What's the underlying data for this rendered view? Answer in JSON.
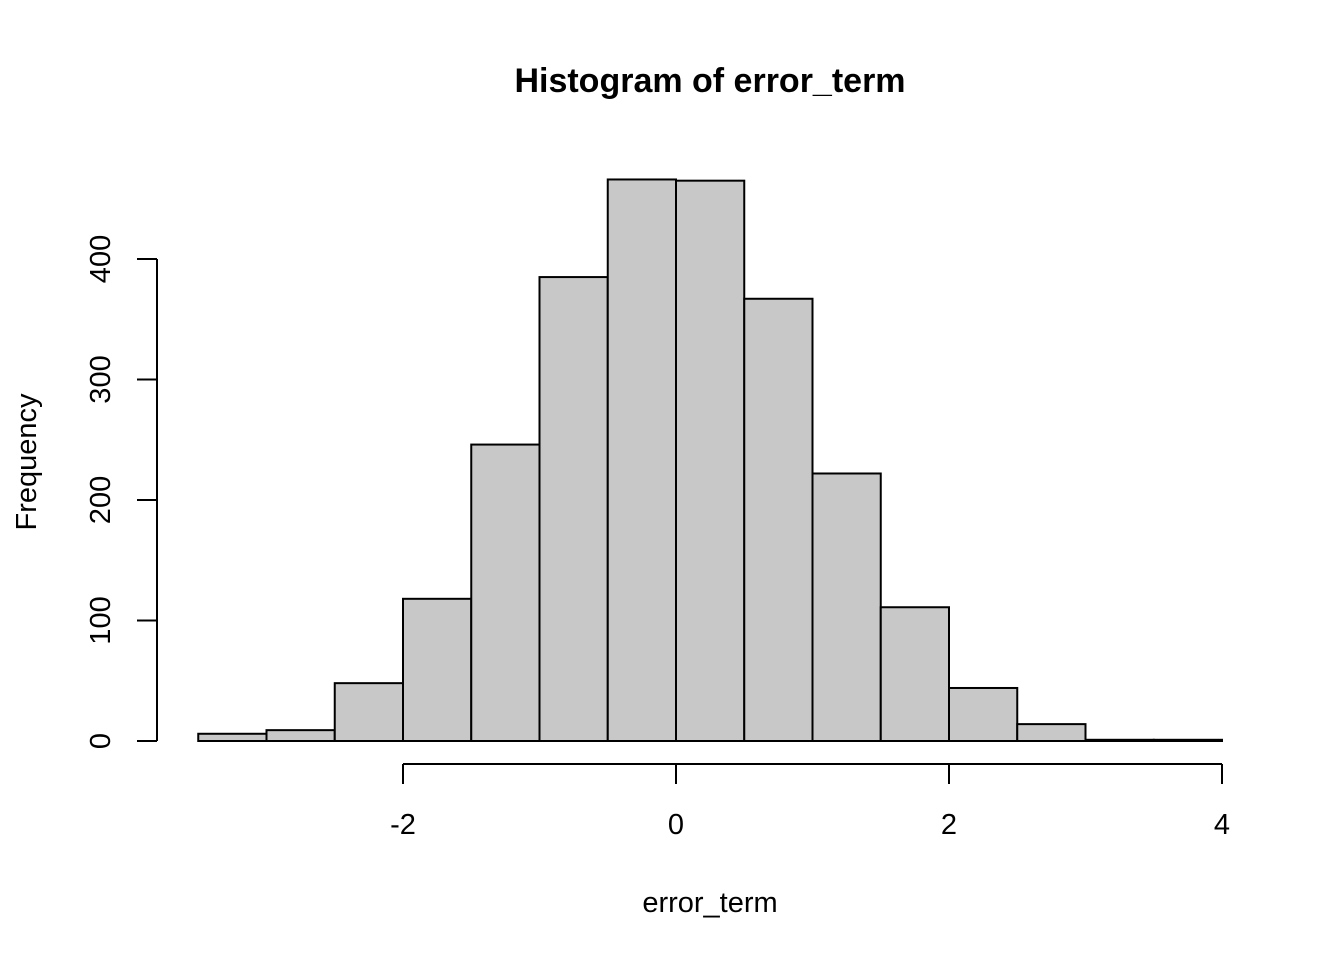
{
  "chart_data": {
    "type": "bar",
    "title": "Histogram of error_term",
    "xlabel": "error_term",
    "ylabel": "Frequency",
    "xlim": [
      -3.5,
      4
    ],
    "ylim": [
      0,
      470
    ],
    "x_ticks": [
      -2,
      0,
      2,
      4
    ],
    "y_ticks": [
      0,
      100,
      200,
      300,
      400
    ],
    "bin_edges": [
      -3.5,
      -3,
      -2.5,
      -2,
      -1.5,
      -1,
      -0.5,
      0,
      0.5,
      1,
      1.5,
      2,
      2.5,
      3,
      3.5,
      4
    ],
    "values": [
      6,
      9,
      48,
      118,
      246,
      385,
      466,
      465,
      367,
      222,
      111,
      44,
      14,
      1,
      1
    ],
    "bar_color": "#c8c8c8",
    "edge_color": "#000000",
    "grid": false,
    "legend": "none"
  }
}
